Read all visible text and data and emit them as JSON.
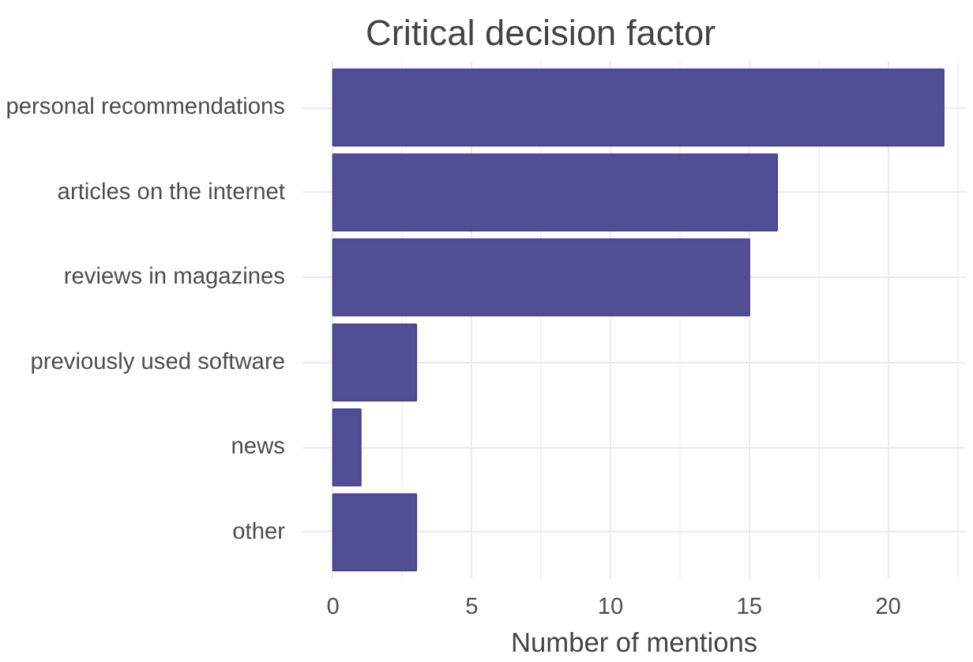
{
  "chart_data": {
    "type": "bar",
    "orientation": "horizontal",
    "title": "Critical decision factor",
    "xlabel": "Number of mentions",
    "categories": [
      "personal recommendations",
      "articles on the internet",
      "reviews in magazines",
      "previously used software",
      "news",
      "other"
    ],
    "values": [
      22,
      16,
      15,
      3,
      1,
      3
    ],
    "color": "#48448f",
    "xlim": [
      -1.1,
      22.8
    ],
    "xticks": [
      0,
      5,
      10,
      15,
      20
    ],
    "grid": true
  }
}
